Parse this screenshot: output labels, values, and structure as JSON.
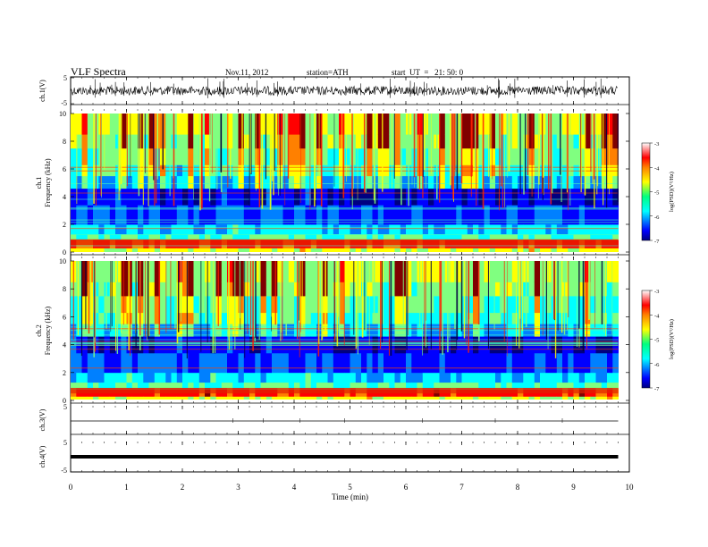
{
  "header": {
    "title": "VLF Spectra",
    "date": "Nov.11, 2012",
    "station": "station=ATH",
    "start": "start  UT  =   21: 50: 0"
  },
  "chart_data": [
    {
      "type": "line",
      "ylabel": "ch.1(V)",
      "ylim": [
        -5,
        5
      ],
      "yticks": [
        "5",
        "-5"
      ],
      "xlim": [
        0,
        10
      ],
      "description_note": "noisy waveform around 0 V"
    },
    {
      "type": "heatmap",
      "ylabel": "ch.1\nFrequency  (kHz)",
      "ylabel_lines": [
        "ch.1",
        "Frequency  (kHz)"
      ],
      "ylim": [
        0,
        10
      ],
      "yticks": [
        "0",
        "2",
        "4",
        "6",
        "8",
        "10"
      ],
      "xlim": [
        0,
        9.8
      ],
      "colorbar": {
        "label": "log(PSD)(V²/Hz)",
        "ticks": [
          "-3",
          "-4",
          "-5",
          "-6",
          "-7"
        ],
        "range": [
          -7,
          -3
        ]
      }
    },
    {
      "type": "heatmap",
      "ylabel": "ch.2\nFrequency  (kHz)",
      "ylabel_lines": [
        "ch.2",
        "Frequency  (kHz)"
      ],
      "ylim": [
        0,
        10
      ],
      "yticks": [
        "0",
        "2",
        "4",
        "6",
        "8",
        "10"
      ],
      "xlim": [
        0,
        9.8
      ],
      "colorbar": {
        "label": "log(PSD)(V²/Hz)",
        "ticks": [
          "-3",
          "-4",
          "-5",
          "-6",
          "-7"
        ],
        "range": [
          -7,
          -3
        ]
      }
    },
    {
      "type": "line",
      "ylabel": "ch.3(V)",
      "ylim": [
        -5,
        5
      ],
      "yticks": [
        "5"
      ],
      "xlim": [
        0,
        10
      ]
    },
    {
      "type": "line",
      "ylabel": "ch.4(V)",
      "ylim": [
        -5,
        5
      ],
      "yticks": [
        "5",
        "-5"
      ],
      "xlim": [
        0,
        10
      ],
      "xlabel": "Time  (min)",
      "xticks": [
        "0",
        "1",
        "2",
        "3",
        "4",
        "5",
        "6",
        "7",
        "8",
        "9",
        "10"
      ]
    }
  ],
  "colors": {
    "jet": [
      "#000080",
      "#0000ff",
      "#0080ff",
      "#00ffff",
      "#80ff80",
      "#ffff00",
      "#ff8000",
      "#ff0000",
      "#800000"
    ],
    "colorbar_top": "#ffffff"
  }
}
